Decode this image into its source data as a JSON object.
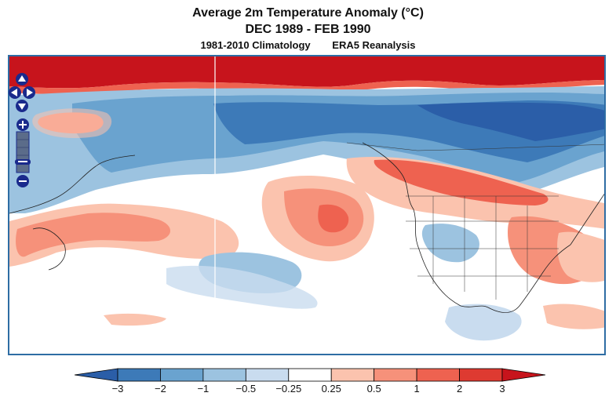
{
  "header": {
    "title": "Average 2m Temperature Anomaly (°C)",
    "period": "DEC 1989 - FEB 1990",
    "climatology": "1981-2010 Climatology",
    "dataset": "ERA5 Reanalysis"
  },
  "map": {
    "projection": "mercator",
    "region": "North Pacific and North America",
    "dateline_marker": true
  },
  "controls": {
    "pan_icons": [
      "arrow-up-icon",
      "arrow-left-icon",
      "arrow-right-icon",
      "arrow-down-icon"
    ],
    "zoom_in_icon": "plus-icon",
    "zoom_out_icon": "minus-icon",
    "accent_color": "#1a2a8c"
  },
  "legend": {
    "ticks": [
      "−3",
      "−2",
      "−1",
      "−0.5",
      "−0.25",
      "0.25",
      "0.5",
      "1",
      "2",
      "3"
    ],
    "colors": {
      "below": "#2b5ea8",
      "bins": [
        "#3d7ab8",
        "#6aa3cf",
        "#9cc3e0",
        "#c9dcef",
        "#ffffff",
        "#fbc3ae",
        "#f6917a",
        "#ee6250",
        "#de3a31"
      ],
      "above": "#c7141c"
    }
  }
}
